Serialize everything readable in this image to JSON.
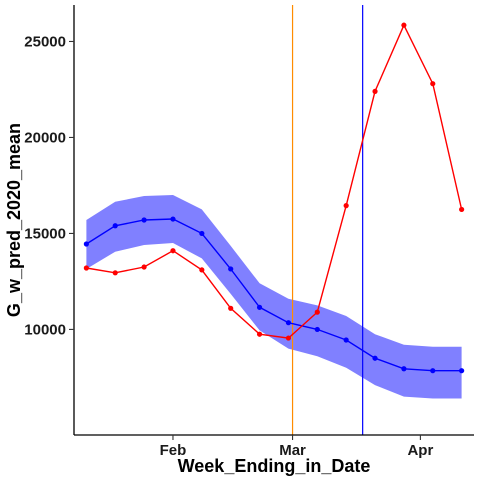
{
  "chart_data": {
    "type": "line",
    "title": "",
    "xlabel": "Week_Ending_in_Date",
    "ylabel": "G_w_pred_2020_mean",
    "x": [
      "2020-01-11",
      "2020-01-18",
      "2020-01-25",
      "2020-02-01",
      "2020-02-08",
      "2020-02-15",
      "2020-02-22",
      "2020-02-29",
      "2020-03-07",
      "2020-03-14",
      "2020-03-21",
      "2020-03-28",
      "2020-04-04",
      "2020-04-11"
    ],
    "xlim": [
      "2020-01-08",
      "2020-04-14"
    ],
    "ylim": [
      4500,
      26900
    ],
    "x_ticks": [
      {
        "date": "2020-02-01",
        "label": "Feb"
      },
      {
        "date": "2020-03-01",
        "label": "Mar"
      },
      {
        "date": "2020-04-01",
        "label": "Apr"
      }
    ],
    "y_ticks": [
      10000,
      15000,
      20000,
      25000
    ],
    "y_tick_labels": [
      "10000",
      "15000",
      "20000",
      "25000"
    ],
    "grid": false,
    "legend": "none",
    "series": [
      {
        "color": "#0000ff",
        "values": [
          14450,
          15400,
          15700,
          15750,
          15000,
          13150,
          11150,
          10350,
          10000,
          9450,
          8500,
          7950,
          7850,
          7850
        ],
        "band_upper": [
          15700,
          16650,
          16950,
          17000,
          16250,
          14350,
          12400,
          11600,
          11250,
          10700,
          9750,
          9200,
          9100,
          9100
        ],
        "band_lower": [
          13150,
          14050,
          14400,
          14500,
          13700,
          11850,
          9950,
          9000,
          8600,
          8000,
          7100,
          6500,
          6400,
          6400
        ],
        "band_color": "#8080ff"
      },
      {
        "color": "#ff0000",
        "values": [
          13200,
          12950,
          13250,
          14100,
          13100,
          11100,
          9750,
          9550,
          10900,
          16450,
          22400,
          25850,
          22800,
          16250
        ]
      }
    ],
    "vlines": [
      {
        "date": "2020-03-01",
        "color": "#ff8c00"
      },
      {
        "date": "2020-03-18",
        "color": "#0000ff"
      }
    ]
  }
}
